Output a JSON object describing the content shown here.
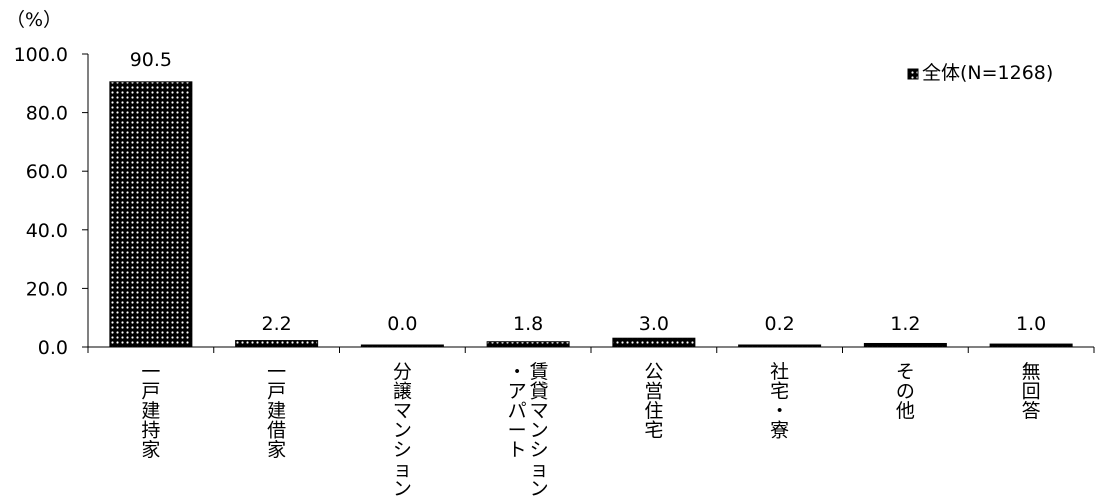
{
  "chart_data": {
    "type": "bar",
    "y_unit": "（%）",
    "categories": [
      "一戸建持家",
      "一戸建借家",
      "分譲マンション",
      "賃貸マンション・アパート",
      "公営住宅",
      "社宅・寮",
      "その他",
      "無回答"
    ],
    "category_lines": [
      [
        "一戸建持家"
      ],
      [
        "一戸建借家"
      ],
      [
        "分譲マンション"
      ],
      [
        "賃貸マンション",
        "・アパート"
      ],
      [
        "公営住宅"
      ],
      [
        "社宅・寮"
      ],
      [
        "その他"
      ],
      [
        "無回答"
      ]
    ],
    "series": [
      {
        "name": "全体(N=1268)",
        "values": [
          90.5,
          2.2,
          0.0,
          1.8,
          3.0,
          0.2,
          1.2,
          1.0
        ]
      }
    ],
    "data_labels": [
      "90.5",
      "2.2",
      "0.0",
      "1.8",
      "3.0",
      "0.2",
      "1.2",
      "1.0"
    ],
    "ylim": [
      0,
      100
    ],
    "y_ticks": [
      "0.0",
      "20.0",
      "40.0",
      "60.0",
      "80.0",
      "100.0"
    ],
    "legend_position": "top-right",
    "grid": false,
    "bar_pattern": "black dotted"
  }
}
